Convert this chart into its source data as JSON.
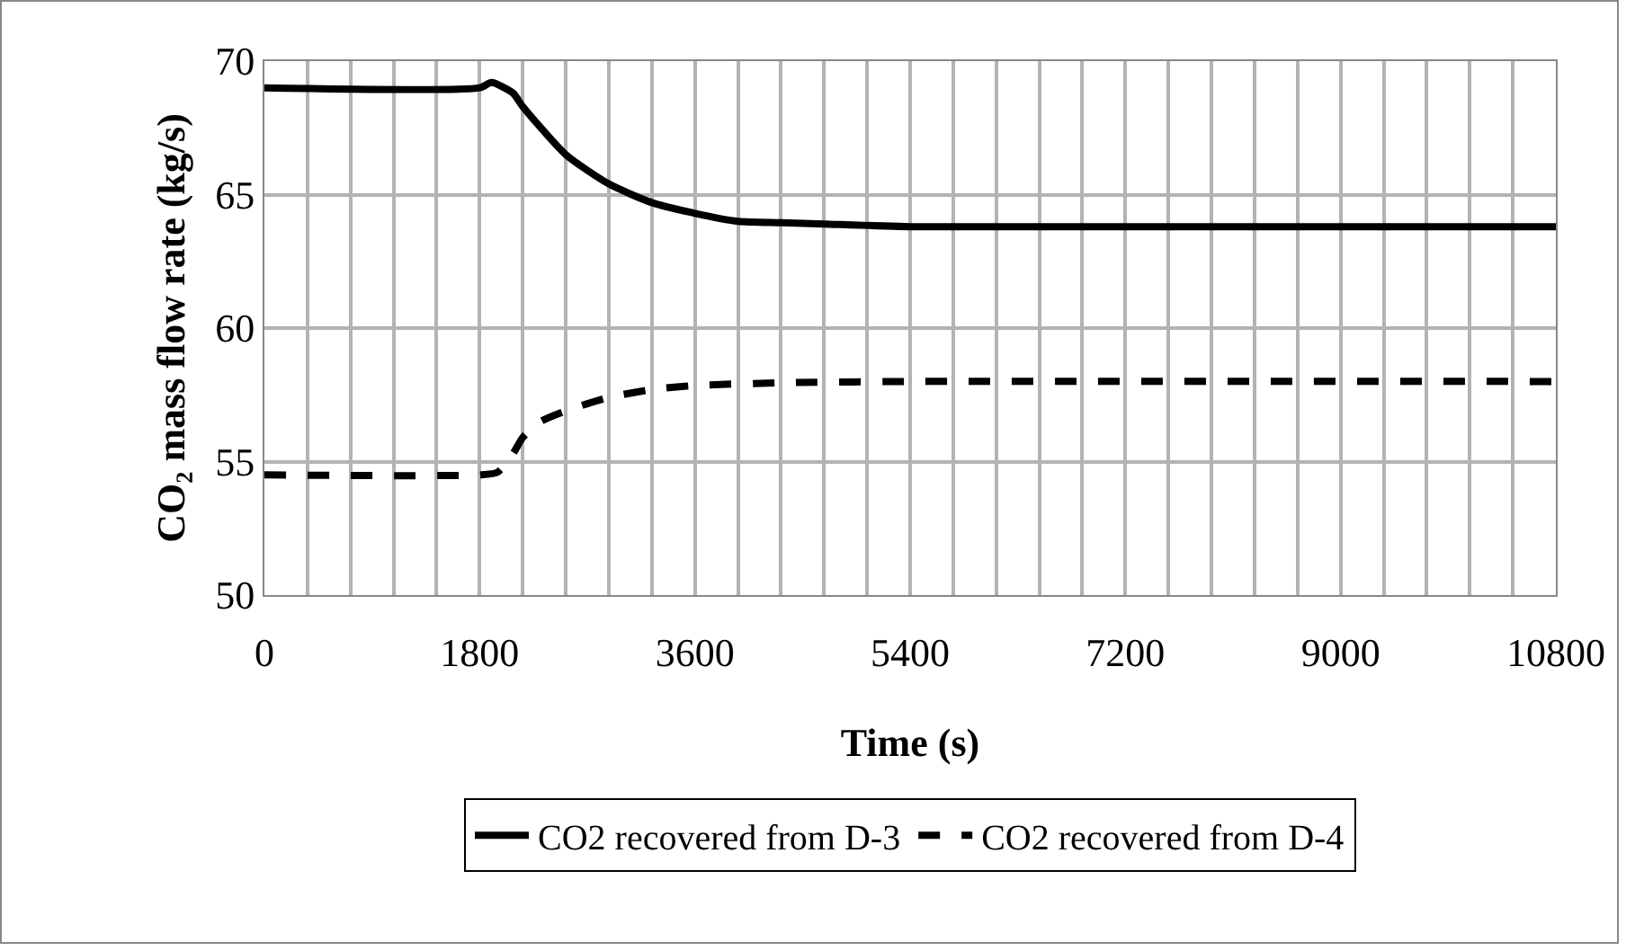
{
  "chart_data": {
    "type": "line",
    "xlabel": "Time (s)",
    "ylabel": "CO₂ mass flow rate (kg/s)",
    "xlim": [
      0,
      10800
    ],
    "ylim": [
      50,
      70
    ],
    "xticks": [
      0,
      {
        "value": 360,
        "label": null
      },
      {
        "value": 720,
        "label": null
      },
      {
        "value": 1080,
        "label": null
      },
      {
        "value": 1440,
        "label": null
      },
      1800,
      {
        "value": 2160,
        "label": null
      },
      {
        "value": 2520,
        "label": null
      },
      {
        "value": 2880,
        "label": null
      },
      {
        "value": 3240,
        "label": null
      },
      3600,
      {
        "value": 3960,
        "label": null
      },
      {
        "value": 4320,
        "label": null
      },
      {
        "value": 4680,
        "label": null
      },
      {
        "value": 5040,
        "label": null
      },
      5400,
      {
        "value": 5760,
        "label": null
      },
      {
        "value": 6120,
        "label": null
      },
      {
        "value": 6480,
        "label": null
      },
      {
        "value": 6840,
        "label": null
      },
      7200,
      {
        "value": 7560,
        "label": null
      },
      {
        "value": 7920,
        "label": null
      },
      {
        "value": 8280,
        "label": null
      },
      {
        "value": 8640,
        "label": null
      },
      9000,
      {
        "value": 9360,
        "label": null
      },
      {
        "value": 9720,
        "label": null
      },
      {
        "value": 10080,
        "label": null
      },
      {
        "value": 10440,
        "label": null
      },
      10800
    ],
    "yticks": [
      50,
      55,
      60,
      65,
      70
    ],
    "grid": true,
    "legend": "bottom",
    "marker": "none",
    "series": [
      {
        "name": "CO2 recovered from D-3",
        "color": "#000000",
        "line_style": "solid",
        "x": [
          0,
          1800,
          1900,
          2080,
          2160,
          2520,
          2880,
          3240,
          3600,
          3960,
          4320,
          4680,
          5400,
          10800
        ],
        "values": [
          69,
          69,
          69.2,
          68.8,
          68.3,
          66.5,
          65.4,
          64.7,
          64.3,
          64.0,
          63.95,
          63.9,
          63.8,
          63.8
        ]
      },
      {
        "name": "CO2 recovered from D-4",
        "color": "#000000",
        "line_style": "dashed",
        "x": [
          0,
          1800,
          1950,
          2080,
          2160,
          2310,
          2520,
          2880,
          3240,
          3600,
          4320,
          5400,
          10800
        ],
        "values": [
          54.5,
          54.5,
          54.6,
          55.3,
          55.9,
          56.5,
          56.9,
          57.4,
          57.7,
          57.85,
          57.95,
          58,
          58
        ]
      }
    ]
  }
}
